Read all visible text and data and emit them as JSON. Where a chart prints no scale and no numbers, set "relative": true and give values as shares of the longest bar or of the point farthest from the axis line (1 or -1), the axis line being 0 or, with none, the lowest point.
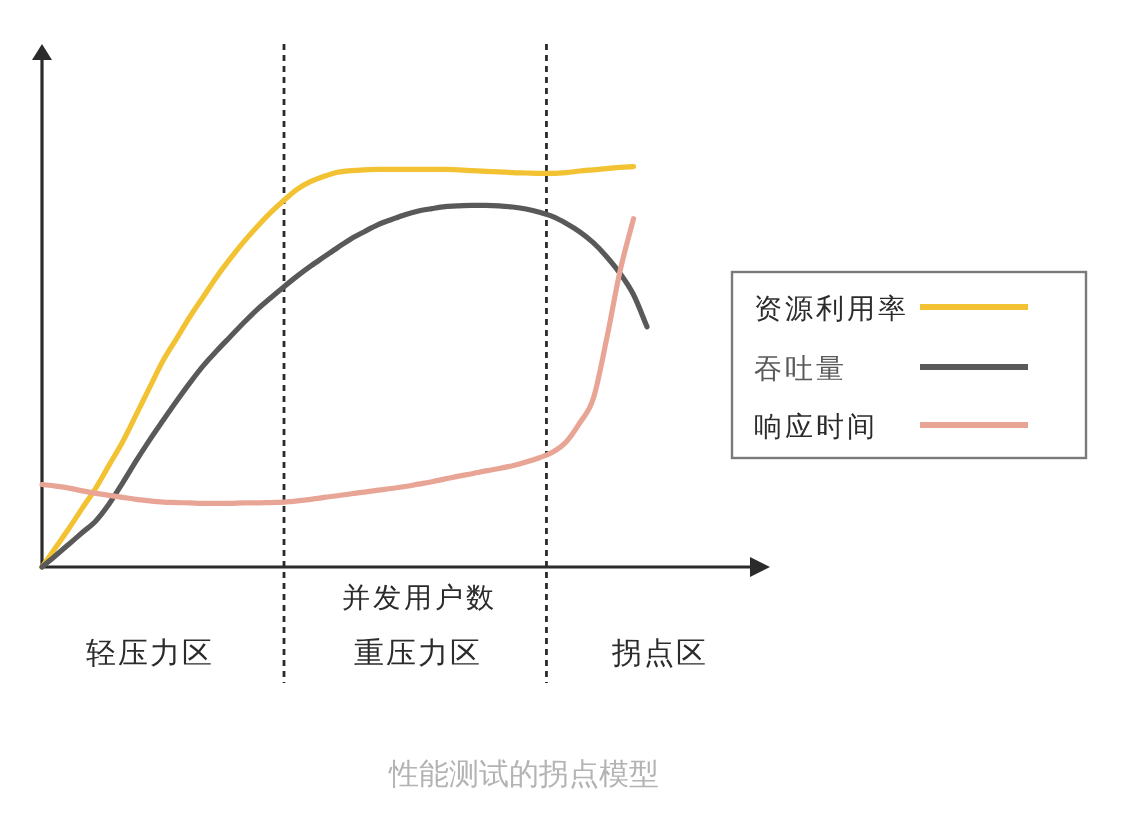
{
  "chart_data": {
    "type": "line",
    "title": "性能测试的拐点模型",
    "xlabel": "并发用户数",
    "relative": true,
    "categories": [
      null,
      null,
      null,
      null,
      null,
      null,
      null,
      null,
      "轻压力区",
      null,
      null,
      null,
      null,
      null,
      null,
      null,
      null,
      null,
      null,
      null,
      null,
      null,
      null,
      null,
      null,
      null,
      null,
      null,
      "重压力区",
      null,
      null,
      null,
      null,
      null,
      null,
      null,
      null,
      null,
      null,
      null,
      null,
      null,
      null,
      null,
      null,
      null,
      "拐点区",
      null,
      null,
      null,
      null,
      null,
      null,
      null,
      null
    ],
    "legend": "right",
    "series": [
      {
        "name": "资源利用率",
        "color": "#f2c232",
        "values": [
          0,
          0.048,
          0.096,
          0.147,
          0.197,
          0.255,
          0.313,
          0.38,
          0.448,
          0.515,
          0.57,
          0.625,
          0.675,
          0.725,
          0.77,
          0.812,
          0.85,
          0.885,
          0.916,
          0.944,
          0.963,
          0.976,
          0.986,
          0.99,
          0.992,
          0.993,
          0.993,
          0.993,
          0.993,
          0.993,
          0.993,
          0.992,
          0.99,
          0.988,
          0.987,
          0.985,
          0.984,
          0.983,
          0.983,
          0.985,
          0.989,
          0.992,
          0.995,
          0.998,
          1,
          null,
          null,
          null,
          null,
          null,
          null,
          null,
          null,
          null,
          null
        ]
      },
      {
        "name": "吞吐量",
        "color": "#595959",
        "values": [
          0,
          0.028,
          0.057,
          0.086,
          0.115,
          0.158,
          0.21,
          0.265,
          0.317,
          0.366,
          0.414,
          0.46,
          0.503,
          0.54,
          0.575,
          0.61,
          0.643,
          0.672,
          0.7,
          0.727,
          0.752,
          0.775,
          0.798,
          0.82,
          0.838,
          0.855,
          0.868,
          0.88,
          0.889,
          0.895,
          0.9,
          0.902,
          0.903,
          0.903,
          0.902,
          0.899,
          0.894,
          0.886,
          0.875,
          0.858,
          0.837,
          0.81,
          0.775,
          0.733,
          0.68,
          0.6,
          null,
          null,
          null,
          null,
          null,
          null,
          null,
          null,
          null
        ]
      },
      {
        "name": "响应时间",
        "color": "#e8a595",
        "values": [
          0.206,
          0.202,
          0.197,
          0.19,
          0.184,
          0.179,
          0.174,
          0.169,
          0.165,
          0.162,
          0.161,
          0.16,
          0.159,
          0.159,
          0.159,
          0.16,
          0.16,
          0.161,
          0.162,
          0.165,
          0.169,
          0.174,
          0.178,
          0.183,
          0.187,
          0.192,
          0.196,
          0.201,
          0.207,
          0.213,
          0.22,
          0.227,
          0.233,
          0.24,
          0.246,
          0.253,
          0.262,
          0.273,
          0.287,
          0.313,
          0.36,
          0.42,
          0.57,
          0.74,
          0.87,
          null,
          null,
          null,
          null,
          null,
          null,
          null,
          null,
          null,
          null
        ]
      }
    ]
  }
}
